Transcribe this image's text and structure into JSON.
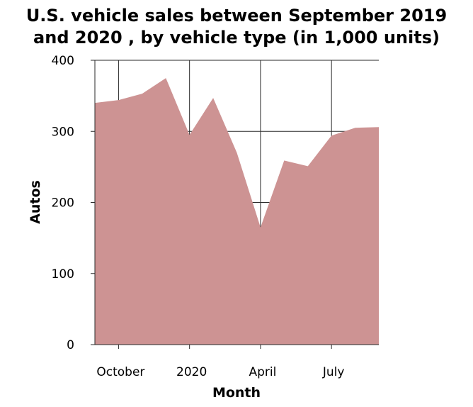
{
  "chart_data": {
    "type": "area",
    "title_lines": [
      "U.S. vehicle sales between September 2019",
      "and 2020 , by vehicle type (in 1,000 units)"
    ],
    "xlabel": "Month",
    "ylabel": "Autos",
    "x_tick_labels": [
      "October",
      "2020",
      "April",
      "July"
    ],
    "y_ticks": [
      0,
      100,
      200,
      300,
      400
    ],
    "ylim": [
      0,
      400
    ],
    "x": [
      "2019-09",
      "2019-10",
      "2019-11",
      "2019-12",
      "2020-01",
      "2020-02",
      "2020-03",
      "2020-04",
      "2020-05",
      "2020-06",
      "2020-07",
      "2020-08",
      "2020-09"
    ],
    "series": [
      {
        "values": [
          340,
          344,
          353,
          375,
          295,
          347,
          270,
          165,
          259,
          251,
          294,
          305,
          306
        ],
        "color": "#cd9393"
      }
    ],
    "grid": true
  }
}
